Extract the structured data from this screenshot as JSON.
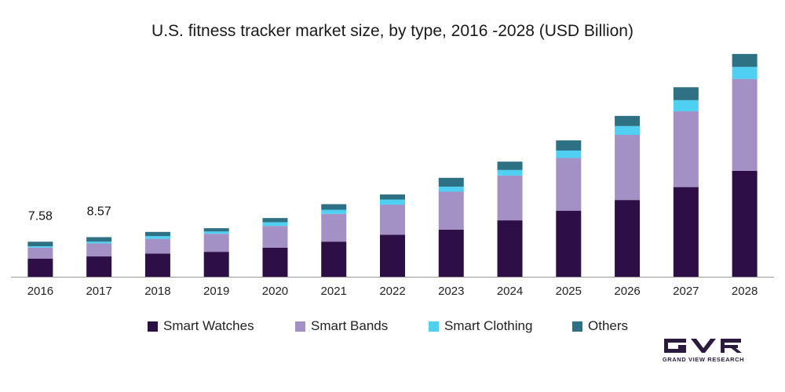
{
  "chart_data": {
    "type": "bar",
    "stacked": true,
    "title": "U.S. fitness tracker market size, by type, 2016 -2028 (USD Billion)",
    "xlabel": "",
    "ylabel": "",
    "grid": false,
    "legend_position": "bottom",
    "ylim": [
      0,
      48
    ],
    "categories": [
      "2016",
      "2017",
      "2018",
      "2019",
      "2020",
      "2021",
      "2022",
      "2023",
      "2024",
      "2025",
      "2026",
      "2027",
      "2028"
    ],
    "series": [
      {
        "name": "Smart Watches",
        "color": "#2e0f45",
        "values": [
          3.9,
          4.4,
          5.0,
          5.4,
          6.3,
          7.6,
          9.1,
          10.2,
          12.2,
          14.3,
          16.6,
          19.4,
          22.9
        ]
      },
      {
        "name": "Smart Bands",
        "color": "#a391c6",
        "values": [
          2.4,
          2.8,
          3.2,
          3.9,
          4.7,
          6.0,
          6.5,
          8.2,
          9.7,
          11.4,
          14.1,
          16.4,
          19.9
        ]
      },
      {
        "name": "Smart Clothing",
        "color": "#4fd0f2",
        "values": [
          0.3,
          0.4,
          0.6,
          0.5,
          0.8,
          0.9,
          1.1,
          1.1,
          1.2,
          1.6,
          1.9,
          2.4,
          2.6
        ]
      },
      {
        "name": "Others",
        "color": "#2e7084",
        "values": [
          0.98,
          0.97,
          0.9,
          0.7,
          0.9,
          1.2,
          1.1,
          1.9,
          1.8,
          2.2,
          2.2,
          2.8,
          2.8
        ]
      }
    ],
    "data_labels": [
      {
        "category": "2016",
        "text": "7.58"
      },
      {
        "category": "2017",
        "text": "8.57"
      }
    ]
  },
  "logo": {
    "name": "GRAND VIEW RESEARCH"
  }
}
